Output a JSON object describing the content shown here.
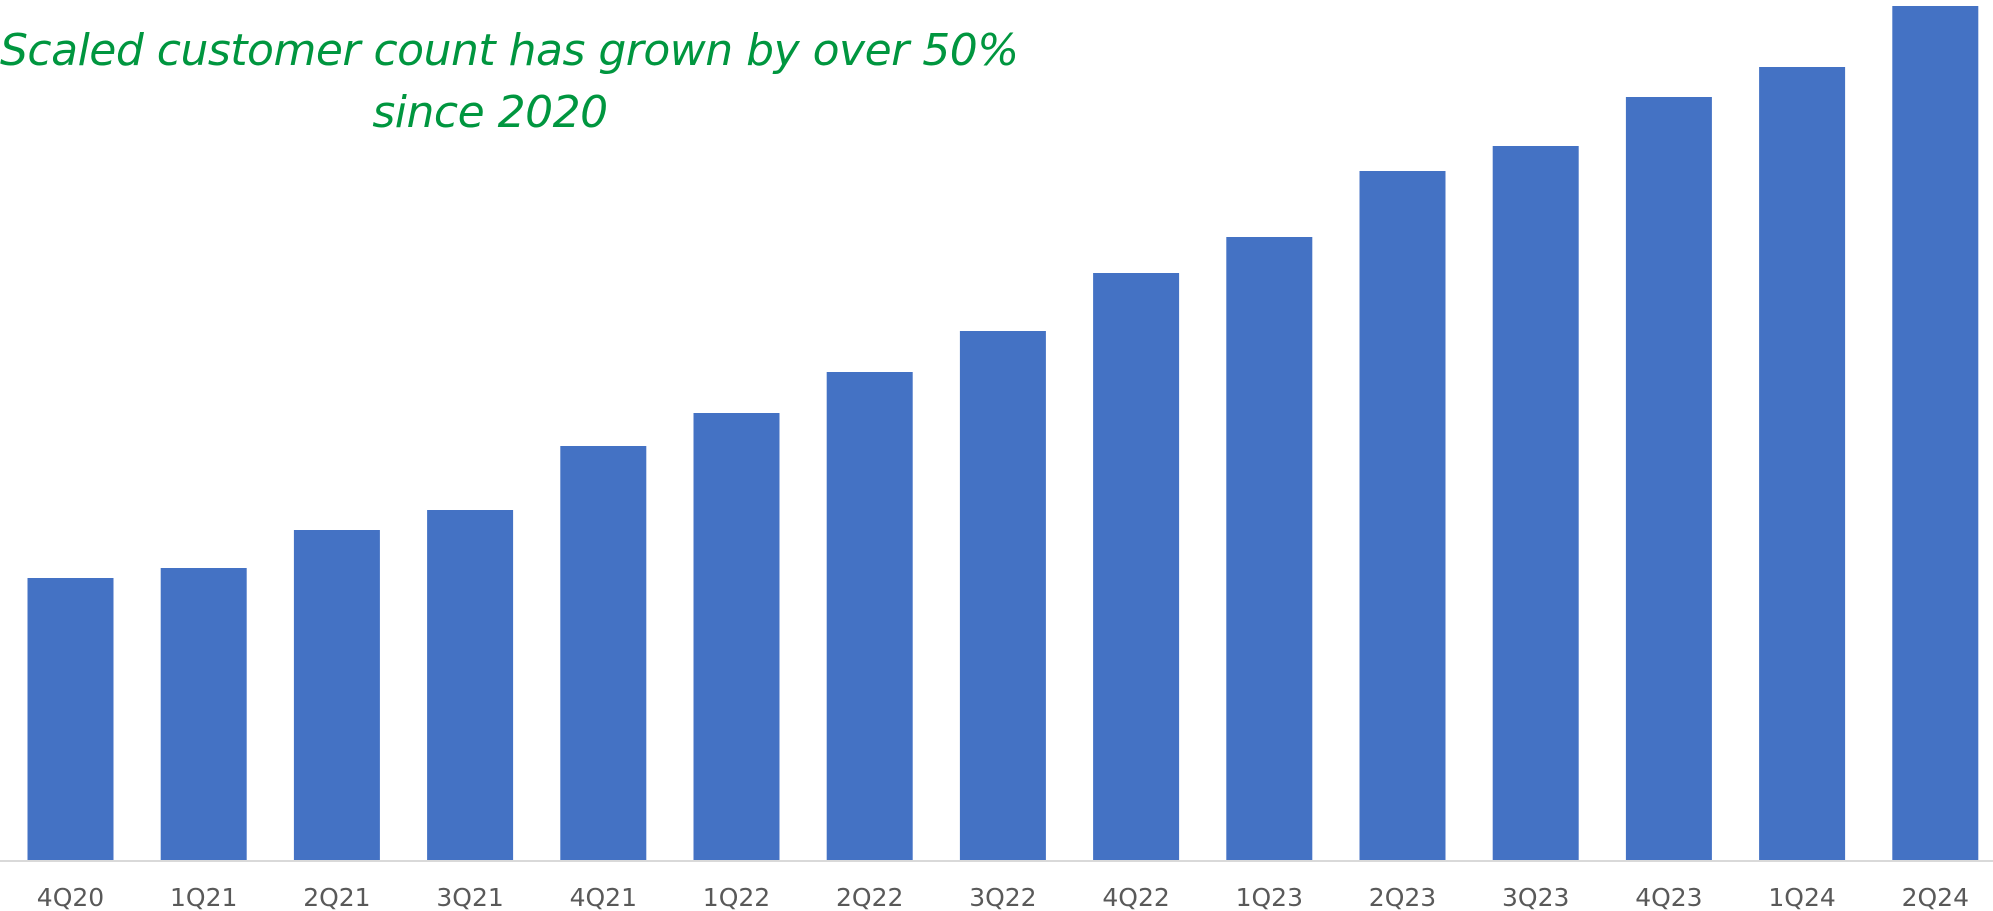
{
  "chart_data": {
    "type": "bar",
    "title_lines": [
      "Scaled customer count has grown by over 50%",
      "since 2020"
    ],
    "title_color": "#00963f",
    "xlabel": "",
    "ylabel": "",
    "categories": [
      "4Q20",
      "1Q21",
      "2Q21",
      "3Q21",
      "4Q21",
      "1Q22",
      "2Q22",
      "3Q22",
      "4Q22",
      "1Q23",
      "2Q23",
      "3Q23",
      "4Q23",
      "1Q24",
      "2Q24"
    ],
    "values": [
      283,
      293,
      331,
      351,
      415,
      448,
      489,
      530,
      588,
      624,
      690,
      715,
      764,
      794,
      855
    ],
    "value_units": "relative bar height (y-axis unlabeled)",
    "ylim": [
      0,
      860
    ],
    "bar_color": "#4472c4",
    "axis_color": "#d9d9d9",
    "tick_color": "#595959",
    "grid": false,
    "legend": "none"
  }
}
